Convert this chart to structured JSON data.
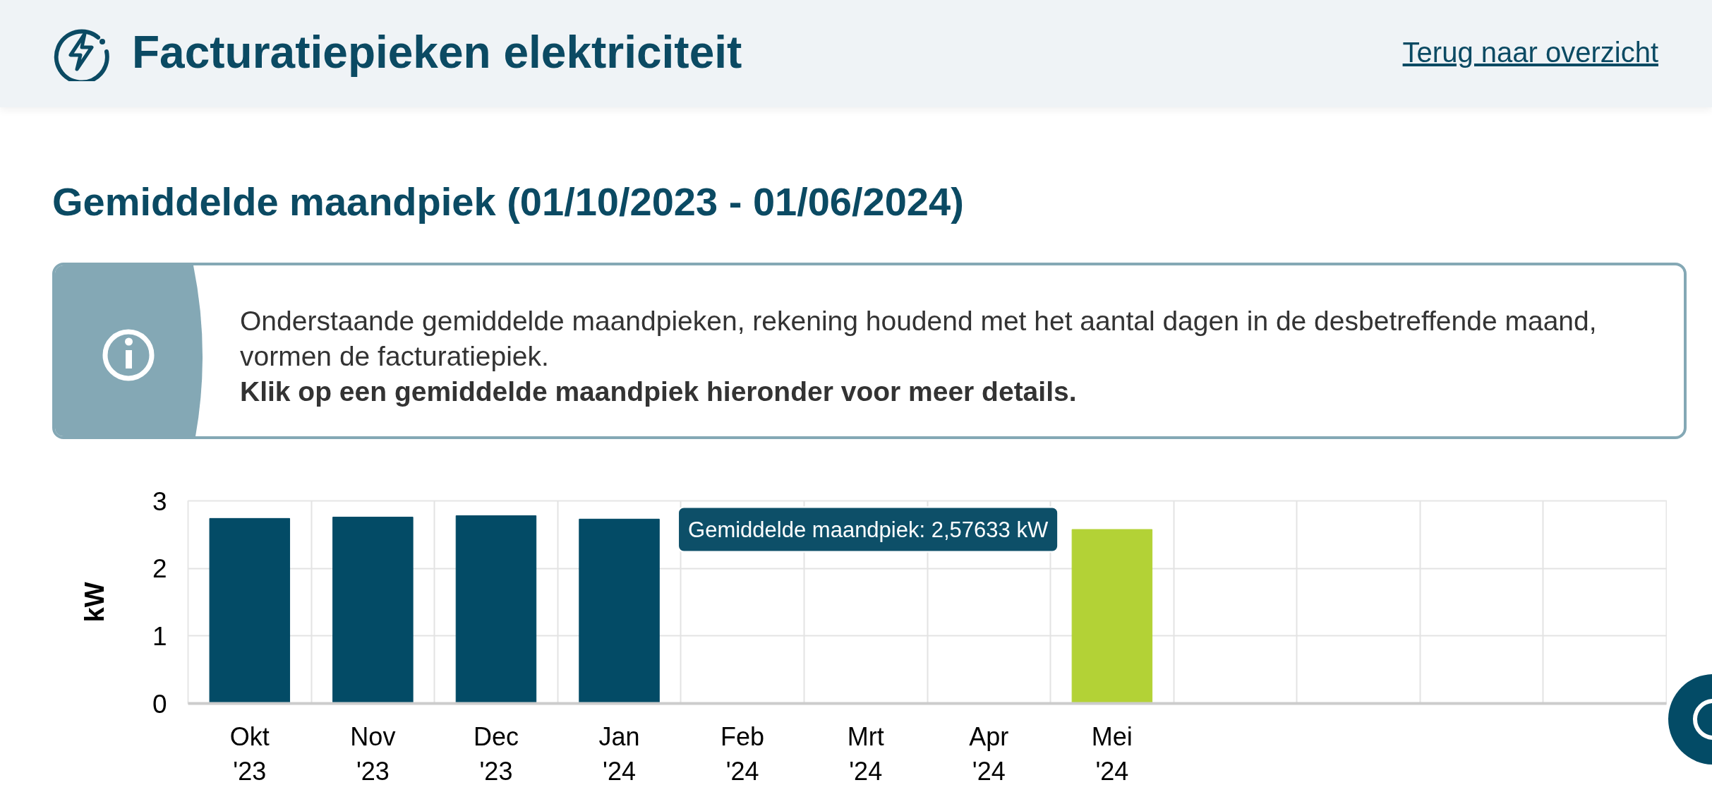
{
  "chart_data": {
    "type": "bar",
    "title": "Facturatiepieken elektriciteit",
    "subtitle": "Gemiddelde maandpiek (01/10/2023 - 01/06/2024)",
    "ylabel": "kW",
    "categories": [
      "Okt\n'23",
      "Nov\n'23",
      "Dec\n'23",
      "Jan\n'24",
      "Feb\n'24",
      "Mrt\n'24",
      "Apr\n'24",
      "Mei\n'24",
      null,
      null,
      null,
      null
    ],
    "values": [
      2.74,
      2.76,
      2.78,
      2.73,
      null,
      null,
      null,
      2.57633,
      null,
      null,
      null,
      null
    ],
    "colors": [
      "#034b66",
      "#034b66",
      "#034b66",
      "#034b66",
      "#034b66",
      "#034b66",
      "#034b66",
      "#b3d236",
      "#034b66",
      "#034b66",
      "#034b66",
      "#034b66"
    ],
    "ylim": [
      0,
      3
    ],
    "yticks": [
      0,
      1,
      2,
      3
    ],
    "grid": true,
    "annotations": [
      "Terug naar overzicht",
      "Onderstaande gemiddelde maandpieken, rekening houdend met het aantal dagen in de desbetreffende maand, vormen de facturatiepiek.",
      "Klik op een gemiddelde maandpiek hieronder voor meer details.",
      {
        "text": "Gemiddelde maandpiek: 2,57633 kW",
        "x": "Mei\n'24",
        "y": 2.57633
      }
    ]
  }
}
